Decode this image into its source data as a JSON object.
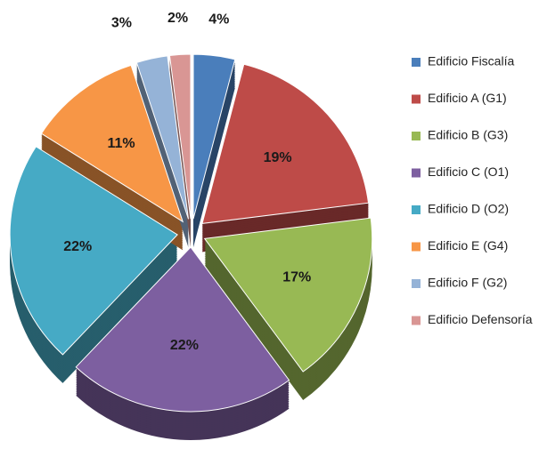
{
  "chart_data": {
    "type": "pie",
    "categories": [
      "Edificio Fiscalía",
      "Edificio A (G1)",
      "Edificio B (G3)",
      "Edificio C (O1)",
      "Edificio D (O2)",
      "Edificio E (G4)",
      "Edificio F (G2)",
      "Edificio Defensoría"
    ],
    "values": [
      4,
      19,
      17,
      22,
      22,
      11,
      3,
      2
    ],
    "value_labels": [
      "4%",
      "19%",
      "17%",
      "22%",
      "22%",
      "11%",
      "3%",
      "2%"
    ],
    "colors": [
      "#4a7ebb",
      "#be4b48",
      "#98b954",
      "#7d5fa0",
      "#46aac5",
      "#f79646",
      "#95b3d7",
      "#d99694"
    ],
    "legend": "right"
  }
}
